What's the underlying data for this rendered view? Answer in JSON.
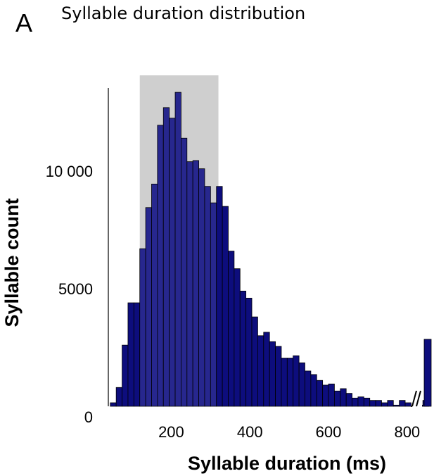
{
  "panel_label": "A",
  "chart_data": {
    "type": "bar",
    "title": "Syllable duration distribution",
    "xlabel": "Syllable duration (ms)",
    "ylabel": "Syllable count",
    "xlim": [
      40,
      820
    ],
    "ylim": [
      0,
      14000
    ],
    "bin_width": 15,
    "x_start": 45,
    "bin_counts": [
      150,
      800,
      2600,
      4400,
      4400,
      6700,
      8450,
      9450,
      11950,
      12700,
      12250,
      13350,
      11400,
      10400,
      10450,
      10100,
      9350,
      8650,
      9350,
      8500,
      6600,
      5850,
      4900,
      4600,
      3800,
      3000,
      3150,
      2750,
      2550,
      2050,
      2050,
      2150,
      1850,
      1500,
      1350,
      1100,
      900,
      950,
      650,
      750,
      550,
      350,
      400,
      350,
      250,
      250,
      150,
      250,
      50,
      250,
      150,
      0,
      50,
      250
    ],
    "highlight_range": [
      120,
      320
    ],
    "overflow_bin": {
      "count": 2850
    },
    "x_ticks": [
      {
        "value": 200,
        "label": "200"
      },
      {
        "value": 400,
        "label": "400"
      },
      {
        "value": 600,
        "label": "600"
      },
      {
        "value": 800,
        "label": "800"
      }
    ],
    "y_ticks": [
      {
        "value": 0,
        "label": "0"
      },
      {
        "value": 5000,
        "label": "5000"
      },
      {
        "value": 10000,
        "label": "10 000"
      }
    ],
    "axis_break": true,
    "colors": {
      "bar": "#0d0d7d",
      "highlight": "#cfcfcf"
    }
  }
}
